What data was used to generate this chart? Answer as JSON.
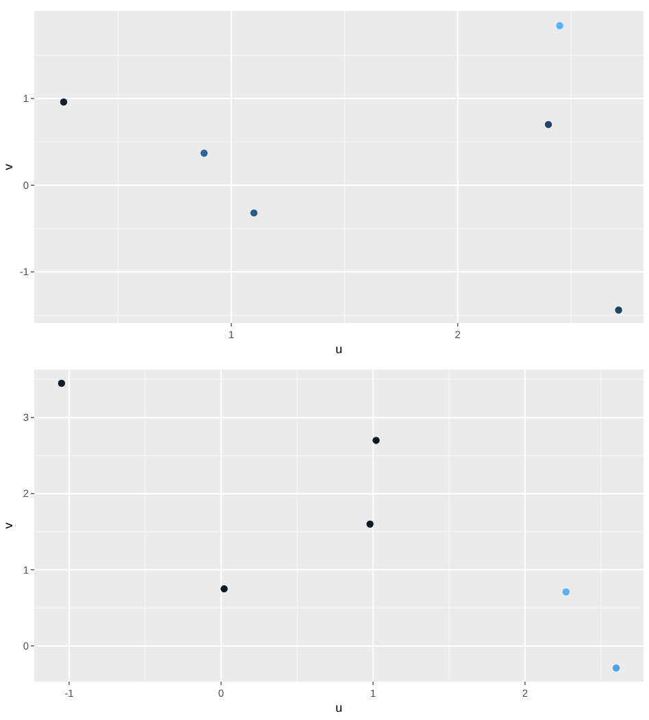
{
  "chart_data": [
    {
      "type": "scatter",
      "xlabel": "u",
      "ylabel": "v",
      "grid": true,
      "marker": "circle",
      "x": [
        0.26,
        0.88,
        1.1,
        2.4,
        2.45,
        2.71
      ],
      "values": [
        0.96,
        0.37,
        -0.32,
        0.7,
        1.84,
        -1.44
      ],
      "colors": [
        "#0f1f30",
        "#2e6496",
        "#2a5a88",
        "#1f4668",
        "#56b1f7",
        "#1e4262"
      ],
      "xlim": [
        0.13,
        2.82
      ],
      "ylim": [
        -1.59,
        2.01
      ],
      "xticks": [
        1,
        2
      ],
      "yticks": [
        -1,
        0,
        1
      ]
    },
    {
      "type": "scatter",
      "xlabel": "u",
      "ylabel": "v",
      "grid": true,
      "marker": "circle",
      "x": [
        -1.05,
        0.02,
        1.02,
        0.98,
        2.27,
        2.6
      ],
      "values": [
        3.45,
        0.75,
        2.7,
        1.6,
        0.71,
        -0.29
      ],
      "colors": [
        "#0c1a28",
        "#0c1a28",
        "#0c1a28",
        "#0c1a28",
        "#56b1f7",
        "#4ea2e3"
      ],
      "xlim": [
        -1.23,
        2.78
      ],
      "ylim": [
        -0.47,
        3.63
      ],
      "xticks": [
        -1,
        0,
        1,
        2
      ],
      "yticks": [
        0,
        1,
        2,
        3
      ]
    }
  ]
}
